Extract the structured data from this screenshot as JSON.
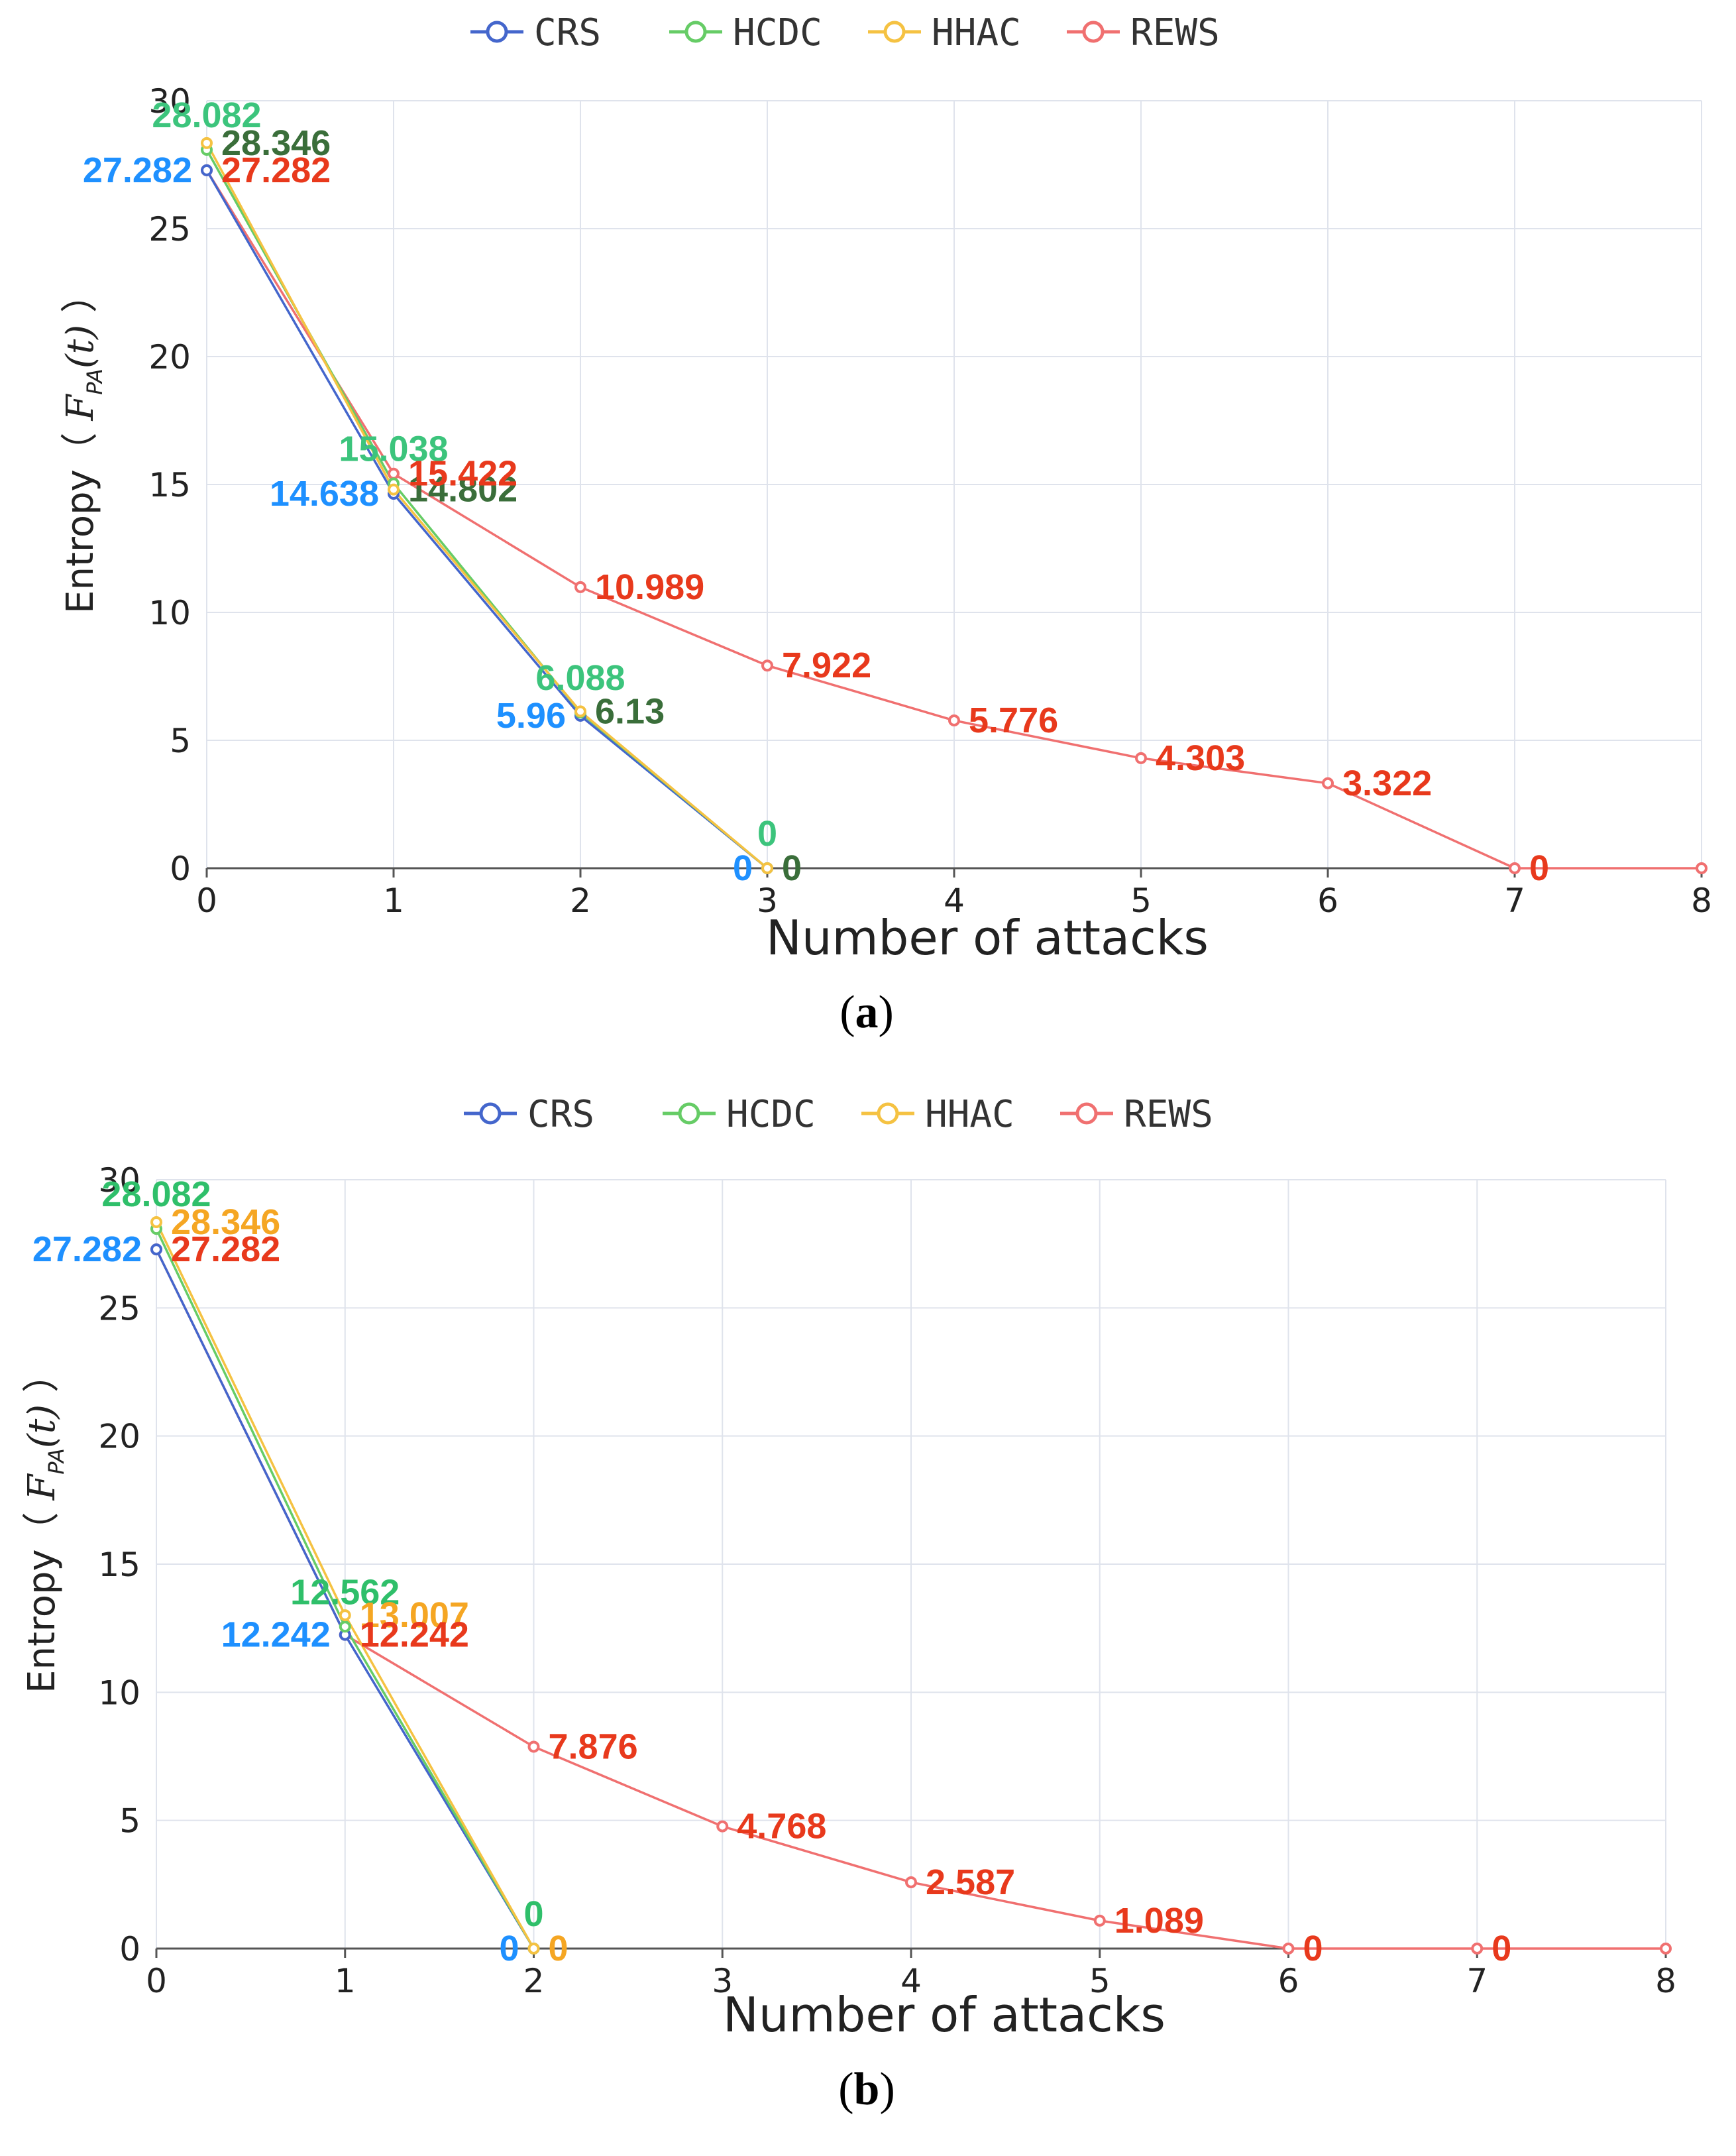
{
  "chart_data": [
    {
      "id": "a",
      "type": "line",
      "caption": "a",
      "xlabel": "Number of attacks",
      "ylabel": "Entropy (F_PA(t))",
      "ylabel_text": "Entropy（",
      "ylabel_math_base": "F",
      "ylabel_math_sub": "PA",
      "ylabel_math_tail": "(t)",
      "ylabel_close": "）",
      "xlim": [
        0,
        8
      ],
      "ylim": [
        0,
        30
      ],
      "xticks": [
        0,
        1,
        2,
        3,
        4,
        5,
        6,
        7,
        8
      ],
      "yticks": [
        0,
        5,
        10,
        15,
        20,
        25,
        30
      ],
      "legend": [
        "CRS",
        "HCDC",
        "HHAC",
        "REWS"
      ],
      "series": [
        {
          "name": "CRS",
          "color": "#4466cc",
          "label_color": "#1e90ff",
          "x": [
            0,
            1,
            2,
            3
          ],
          "values": [
            27.282,
            14.638,
            5.96,
            0
          ],
          "labels": [
            "27.282",
            "14.638",
            "5.96",
            "0"
          ],
          "label_pos": [
            "left",
            "left",
            "left",
            "left"
          ]
        },
        {
          "name": "HCDC",
          "color": "#66cc66",
          "label_color": "#3cc47c",
          "x": [
            0,
            1,
            2,
            3
          ],
          "values": [
            28.082,
            15.038,
            6.088,
            0
          ],
          "labels": [
            "28.082",
            "15.038",
            "6.088",
            "0"
          ],
          "label_pos": [
            "top",
            "top",
            "top",
            "top"
          ]
        },
        {
          "name": "HHAC",
          "color": "#f5c242",
          "label_color": "#3a6e3a",
          "x": [
            0,
            1,
            2,
            3
          ],
          "values": [
            28.346,
            14.802,
            6.13,
            0
          ],
          "labels": [
            "28.346",
            "14.802",
            "6.13",
            "0"
          ],
          "label_pos": [
            "right",
            "right",
            "right",
            "right"
          ]
        },
        {
          "name": "REWS",
          "color": "#f07070",
          "label_color": "#e8391c",
          "x": [
            0,
            1,
            2,
            3,
            4,
            5,
            6,
            7,
            8
          ],
          "values": [
            27.282,
            15.422,
            10.989,
            7.922,
            5.776,
            4.303,
            3.322,
            0,
            0
          ],
          "labels": [
            "27.282",
            "15.422",
            "10.989",
            "7.922",
            "5.776",
            "4.303",
            "3.322",
            "0",
            ""
          ],
          "label_pos": [
            "right",
            "right",
            "right",
            "right",
            "right",
            "right",
            "right",
            "right",
            "none"
          ]
        }
      ]
    },
    {
      "id": "b",
      "type": "line",
      "caption": "b",
      "xlabel": "Number of attacks",
      "ylabel": "Entropy (F_PA(t))",
      "ylabel_text": "Entropy（",
      "ylabel_math_base": "F",
      "ylabel_math_sub": "PA",
      "ylabel_math_tail": "(t)",
      "ylabel_close": "）",
      "xlim": [
        0,
        8
      ],
      "ylim": [
        0,
        30
      ],
      "xticks": [
        0,
        1,
        2,
        3,
        4,
        5,
        6,
        7,
        8
      ],
      "yticks": [
        0,
        5,
        10,
        15,
        20,
        25,
        30
      ],
      "legend": [
        "CRS",
        "HCDC",
        "HHAC",
        "REWS"
      ],
      "series": [
        {
          "name": "CRS",
          "color": "#4466cc",
          "label_color": "#1e90ff",
          "x": [
            0,
            1,
            2
          ],
          "values": [
            27.282,
            12.242,
            0
          ],
          "labels": [
            "27.282",
            "12.242",
            "0"
          ],
          "label_pos": [
            "left",
            "left",
            "left"
          ]
        },
        {
          "name": "HCDC",
          "color": "#66cc66",
          "label_color": "#2fbf6a",
          "x": [
            0,
            1,
            2
          ],
          "values": [
            28.082,
            12.562,
            0
          ],
          "labels": [
            "28.082",
            "12.562",
            "0"
          ],
          "label_pos": [
            "top",
            "top",
            "top"
          ]
        },
        {
          "name": "HHAC",
          "color": "#f5c242",
          "label_color": "#f5a623",
          "x": [
            0,
            1,
            2
          ],
          "values": [
            28.346,
            13.007,
            0
          ],
          "labels": [
            "28.346",
            "13.007",
            "0"
          ],
          "label_pos": [
            "right",
            "right",
            "right"
          ]
        },
        {
          "name": "REWS",
          "color": "#f07070",
          "label_color": "#e8391c",
          "x": [
            0,
            1,
            2,
            3,
            4,
            5,
            6,
            7,
            8
          ],
          "values": [
            27.282,
            12.242,
            7.876,
            4.768,
            2.587,
            1.089,
            0,
            0,
            0
          ],
          "labels": [
            "27.282",
            "12.242",
            "7.876",
            "4.768",
            "2.587",
            "1.089",
            "0",
            "0",
            ""
          ],
          "label_pos": [
            "right",
            "right",
            "right",
            "right",
            "right",
            "right",
            "right",
            "right",
            "none"
          ]
        }
      ]
    }
  ]
}
